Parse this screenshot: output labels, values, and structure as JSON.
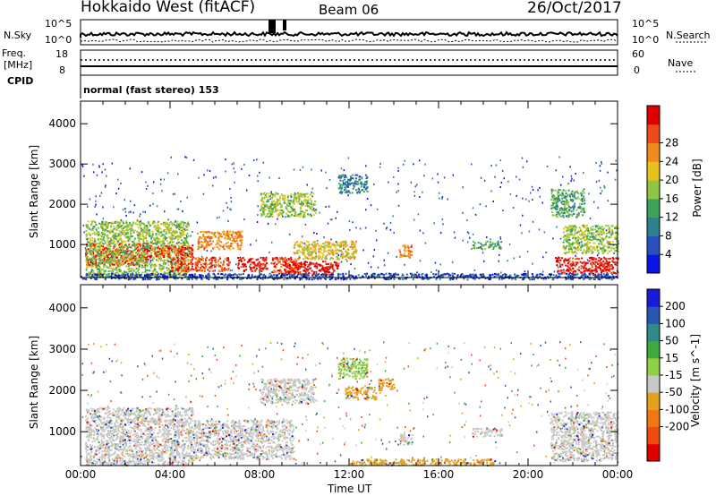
{
  "header": {
    "station": "Hokkaido West (fitACF)",
    "beam": "Beam 06",
    "date": "26/Oct/2017"
  },
  "panels": {
    "nsky_label": "N.Sky",
    "nsky_ticks": [
      "10^5",
      "10^0"
    ],
    "nsearch_label": "N.Search",
    "nsearch_ticks": [
      "10^5",
      "10^0"
    ],
    "freq_label_1": "Freq.",
    "freq_label_2": "[MHz]",
    "freq_ticks": [
      "18",
      "8"
    ],
    "nave_label": "Nave",
    "nave_ticks": [
      "60",
      "0"
    ],
    "cpid_label": "CPID",
    "cpid_text": "normal (fast stereo) 153"
  },
  "chart_data": [
    {
      "type": "heatmap",
      "name": "power",
      "ylabel": "Slant Range [km]",
      "yticks": [
        1000,
        2000,
        3000,
        4000
      ],
      "ylim": [
        180,
        4560
      ],
      "xlim_hours": [
        0,
        24
      ],
      "colorbar_label": "Power [dB]",
      "colorbar_ticks": [
        "4",
        "8",
        "12",
        "16",
        "20",
        "24",
        "28"
      ],
      "colorbar_colors": [
        "#0a14e6",
        "#2a4fc0",
        "#2f7f8f",
        "#3da25a",
        "#8fc63f",
        "#e6c21a",
        "#f08a1c",
        "#f04a1a",
        "#e00000"
      ],
      "regions": [
        {
          "t": [
            0.2,
            3.0
          ],
          "r": [
            500,
            1050
          ],
          "level": 8
        },
        {
          "t": [
            0.2,
            4.8
          ],
          "r": [
            200,
            1600
          ],
          "level": 4
        },
        {
          "t": [
            3.0,
            5.0
          ],
          "r": [
            700,
            1000
          ],
          "level": 7
        },
        {
          "t": [
            4.0,
            6.6
          ],
          "r": [
            350,
            700
          ],
          "level": 7
        },
        {
          "t": [
            5.2,
            7.2
          ],
          "r": [
            900,
            1350
          ],
          "level": 6
        },
        {
          "t": [
            7.0,
            8.3
          ],
          "r": [
            350,
            700
          ],
          "level": 8
        },
        {
          "t": [
            8.5,
            9.8
          ],
          "r": [
            300,
            700
          ],
          "level": 7
        },
        {
          "t": [
            9.0,
            11.5
          ],
          "r": [
            250,
            600
          ],
          "level": 8
        },
        {
          "t": [
            9.5,
            12.3
          ],
          "r": [
            650,
            1100
          ],
          "level": 5
        },
        {
          "t": [
            8.0,
            10.5
          ],
          "r": [
            1700,
            2300
          ],
          "level": 4
        },
        {
          "t": [
            11.5,
            12.8
          ],
          "r": [
            2300,
            2750
          ],
          "level": 2
        },
        {
          "t": [
            14.2,
            14.8
          ],
          "r": [
            700,
            1000
          ],
          "level": 6
        },
        {
          "t": [
            17.5,
            18.8
          ],
          "r": [
            900,
            1100
          ],
          "level": 3
        },
        {
          "t": [
            21.2,
            24.0
          ],
          "r": [
            300,
            700
          ],
          "level": 8
        },
        {
          "t": [
            21.5,
            24.0
          ],
          "r": [
            800,
            1500
          ],
          "level": 4
        },
        {
          "t": [
            21.0,
            22.5
          ],
          "r": [
            1700,
            2400
          ],
          "level": 3
        },
        {
          "t": [
            0.0,
            24.0
          ],
          "r": [
            150,
            300
          ],
          "level": 1
        }
      ]
    },
    {
      "type": "heatmap",
      "name": "velocity",
      "ylabel": "Slant Range [km]",
      "yticks": [
        1000,
        2000,
        3000,
        4000
      ],
      "ylim": [
        180,
        4560
      ],
      "xlim_hours": [
        0,
        24
      ],
      "colorbar_label": "Velocity [m s^-1]",
      "colorbar_ticks": [
        "200",
        "100",
        "50",
        "15",
        "-15",
        "-50",
        "-100",
        "-200"
      ],
      "colorbar_colors": [
        "#1a1ad8",
        "#2a55b4",
        "#2f8a8a",
        "#3caa3c",
        "#8fd048",
        "#c8c8c8",
        "#e6a21a",
        "#f07814",
        "#f04a10",
        "#e00000"
      ],
      "regions": [
        {
          "t": [
            0.2,
            5.0
          ],
          "r": [
            200,
            1600
          ],
          "v": "gray"
        },
        {
          "t": [
            5.0,
            9.5
          ],
          "r": [
            350,
            1300
          ],
          "v": "gray"
        },
        {
          "t": [
            8.0,
            10.5
          ],
          "r": [
            1700,
            2300
          ],
          "v": "gray"
        },
        {
          "t": [
            11.5,
            12.8
          ],
          "r": [
            2300,
            2800
          ],
          "v": "lightgreen"
        },
        {
          "t": [
            11.8,
            13.2
          ],
          "r": [
            1800,
            2100
          ],
          "v": "orange"
        },
        {
          "t": [
            13.3,
            14.0
          ],
          "r": [
            2000,
            2300
          ],
          "v": "orange"
        },
        {
          "t": [
            14.2,
            14.8
          ],
          "r": [
            700,
            1000
          ],
          "v": "gray"
        },
        {
          "t": [
            12.0,
            18.5
          ],
          "r": [
            200,
            350
          ],
          "v": "orange"
        },
        {
          "t": [
            21.0,
            24.0
          ],
          "r": [
            300,
            1500
          ],
          "v": "gray"
        },
        {
          "t": [
            17.5,
            18.8
          ],
          "r": [
            900,
            1100
          ],
          "v": "gray"
        }
      ]
    }
  ],
  "xaxis": {
    "ticks": [
      "00:00",
      "04:00",
      "08:00",
      "12:00",
      "16:00",
      "20:00",
      "00:00"
    ],
    "label": "Time UT"
  }
}
